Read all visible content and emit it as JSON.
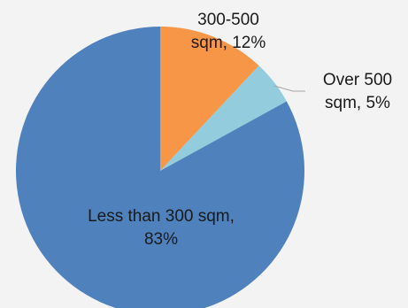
{
  "chart_data": {
    "type": "pie",
    "slices": [
      {
        "name": "300-500 sqm",
        "value": 12,
        "color": "#f79646",
        "label_line1": "300-500",
        "label_line2": "sqm, 12%"
      },
      {
        "name": "Over 500 sqm",
        "value": 5,
        "color": "#93cddd",
        "label_line1": "Over 500",
        "label_line2": "sqm, 5%"
      },
      {
        "name": "Less than 300 sqm",
        "value": 83,
        "color": "#4f81bd",
        "label_line1": "Less than 300 sqm,",
        "label_line2": "83%"
      }
    ],
    "start_angle_deg": 0,
    "direction": "clockwise",
    "leader_line_color": "#a6a6a6"
  }
}
